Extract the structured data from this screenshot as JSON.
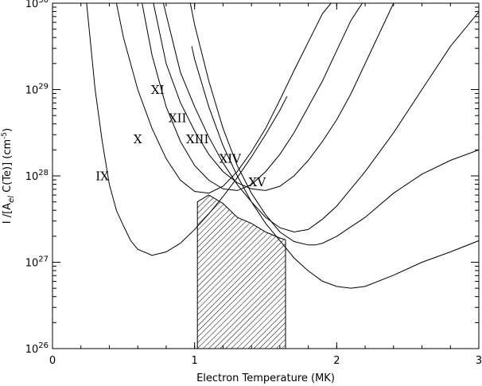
{
  "chart_data": {
    "type": "line",
    "xlabel": "Electron Temperature (MK)",
    "ylabel": "I /[A",
    "ylabel_sub": "el",
    "ylabel_rest": " C(Te)]  (cm",
    "ylabel_exp": "-5",
    "ylabel_close": ")",
    "xlim": [
      0,
      3
    ],
    "ylim": [
      1e+26,
      1e+30
    ],
    "yscale": "log",
    "grid": false,
    "x_ticks": [
      {
        "value": 0,
        "label": "0"
      },
      {
        "value": 1,
        "label": "1"
      },
      {
        "value": 2,
        "label": "2"
      },
      {
        "value": 3,
        "label": "3"
      }
    ],
    "y_ticks": [
      {
        "value": 26,
        "base": "10",
        "exp": "26"
      },
      {
        "value": 27,
        "base": "10",
        "exp": "27"
      },
      {
        "value": 28,
        "base": "10",
        "exp": "28"
      },
      {
        "value": 29,
        "base": "10",
        "exp": "29"
      },
      {
        "value": 30,
        "base": "10",
        "exp": "30"
      }
    ],
    "series": [
      {
        "name": "IX",
        "x": [
          0.24,
          0.3,
          0.35,
          0.4,
          0.45,
          0.5,
          0.55,
          0.6,
          0.7,
          0.8,
          0.9,
          1.0,
          1.1,
          1.2,
          1.3,
          1.4,
          1.5,
          1.6,
          1.65
        ],
        "y": [
          30.0,
          29.0,
          28.4,
          27.9,
          27.6,
          27.42,
          27.25,
          27.15,
          27.08,
          27.12,
          27.22,
          27.38,
          27.56,
          27.76,
          27.98,
          28.22,
          28.48,
          28.76,
          28.92
        ]
      },
      {
        "name": "X",
        "x": [
          0.45,
          0.5,
          0.6,
          0.7,
          0.8,
          0.9,
          1.0,
          1.1,
          1.2,
          1.3,
          1.4,
          1.5,
          1.6,
          1.7,
          1.8,
          1.9,
          1.96
        ],
        "y": [
          30.0,
          29.6,
          29.0,
          28.55,
          28.2,
          27.95,
          27.82,
          27.8,
          27.88,
          28.05,
          28.28,
          28.55,
          28.88,
          29.22,
          29.55,
          29.88,
          30.0
        ]
      },
      {
        "name": "XI",
        "x": [
          0.63,
          0.7,
          0.8,
          0.9,
          1.0,
          1.1,
          1.2,
          1.3,
          1.4,
          1.5,
          1.6,
          1.7,
          1.8,
          1.9,
          2.0,
          2.1,
          2.18
        ],
        "y": [
          30.0,
          29.4,
          28.8,
          28.4,
          28.12,
          27.95,
          27.85,
          27.83,
          27.9,
          28.05,
          28.25,
          28.5,
          28.8,
          29.1,
          29.45,
          29.8,
          30.0
        ]
      },
      {
        "name": "XII",
        "x": [
          0.71,
          0.8,
          0.9,
          1.0,
          1.1,
          1.2,
          1.3,
          1.4,
          1.5,
          1.6,
          1.7,
          1.8,
          1.9,
          2.0,
          2.1,
          2.2,
          2.3,
          2.4
        ],
        "y": [
          30.0,
          29.3,
          28.85,
          28.52,
          28.25,
          28.05,
          27.92,
          27.85,
          27.83,
          27.88,
          28.0,
          28.18,
          28.4,
          28.65,
          28.95,
          29.3,
          29.65,
          30.0
        ]
      },
      {
        "name": "XIII",
        "x": [
          0.78,
          0.9,
          1.0,
          1.1,
          1.2,
          1.3,
          1.4,
          1.5,
          1.6,
          1.7,
          1.8,
          1.9,
          2.0,
          2.2,
          2.4,
          2.6,
          2.8,
          3.0
        ],
        "y": [
          30.0,
          29.2,
          28.8,
          28.45,
          28.15,
          27.9,
          27.7,
          27.52,
          27.4,
          27.35,
          27.38,
          27.5,
          27.65,
          28.05,
          28.5,
          29.0,
          29.5,
          29.9
        ]
      },
      {
        "name": "XIV",
        "x": [
          0.97,
          1.0,
          1.1,
          1.2,
          1.3,
          1.4,
          1.5,
          1.6,
          1.7,
          1.8,
          1.85,
          1.9,
          2.0,
          2.2,
          2.4,
          2.6,
          2.8,
          3.0
        ],
        "y": [
          30.0,
          29.75,
          29.1,
          28.55,
          28.12,
          27.8,
          27.55,
          27.35,
          27.24,
          27.2,
          27.2,
          27.22,
          27.3,
          27.52,
          27.8,
          28.02,
          28.18,
          28.3
        ]
      },
      {
        "name": "XV",
        "x": [
          0.98,
          1.0,
          1.1,
          1.2,
          1.3,
          1.4,
          1.5,
          1.6,
          1.7,
          1.8,
          1.9,
          2.0,
          2.1,
          2.2,
          2.4,
          2.6,
          2.8,
          3.0
        ],
        "y": [
          29.5,
          29.35,
          28.8,
          28.35,
          28.0,
          27.7,
          27.45,
          27.25,
          27.05,
          26.9,
          26.78,
          26.72,
          26.7,
          26.72,
          26.85,
          27.0,
          27.12,
          27.25
        ]
      }
    ],
    "series_label_positions": [
      {
        "name": "IX",
        "x": 0.35,
        "y": 27.95
      },
      {
        "name": "X",
        "x": 0.6,
        "y": 28.38
      },
      {
        "name": "XI",
        "x": 0.74,
        "y": 28.95
      },
      {
        "name": "XII",
        "x": 0.88,
        "y": 28.62
      },
      {
        "name": "XIII",
        "x": 1.02,
        "y": 28.38
      },
      {
        "name": "XIV",
        "x": 1.25,
        "y": 28.15
      },
      {
        "name": "XV",
        "x": 1.44,
        "y": 27.88
      }
    ],
    "shaded_region": {
      "x": [
        1.02,
        1.1,
        1.2,
        1.3,
        1.4,
        1.5,
        1.6,
        1.64,
        1.64,
        1.02
      ],
      "y": [
        27.7,
        27.78,
        27.68,
        27.52,
        27.45,
        27.35,
        27.28,
        27.26,
        26.0,
        26.0
      ]
    }
  }
}
